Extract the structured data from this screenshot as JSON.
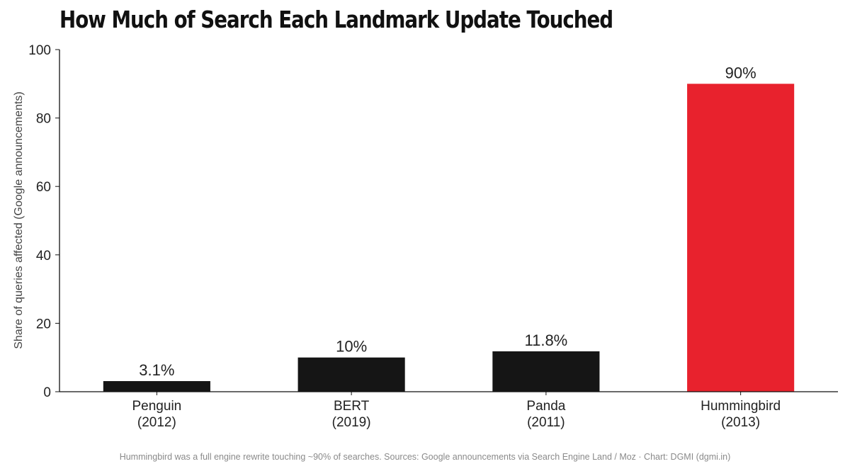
{
  "chart_data": {
    "type": "bar",
    "title": "How Much of Search Each Landmark Update Touched",
    "ylabel": "Share of queries affected (Google announcements)",
    "xlabel": "",
    "categories": [
      [
        "Penguin",
        "(2012)"
      ],
      [
        "BERT",
        "(2019)"
      ],
      [
        "Panda",
        "(2011)"
      ],
      [
        "Hummingbird",
        "(2013)"
      ]
    ],
    "values": [
      3.1,
      10,
      11.8,
      90
    ],
    "data_labels": [
      "3.1%",
      "10%",
      "11.8%",
      "90%"
    ],
    "bar_colors": [
      "#151515",
      "#151515",
      "#151515",
      "#e8222d"
    ],
    "ylim": [
      0,
      100
    ],
    "yticks": [
      0,
      20,
      40,
      60,
      80,
      100
    ],
    "grid": false,
    "legend": "none"
  },
  "footer": "Hummingbird was a full engine rewrite touching ~90% of searches. Sources: Google announcements via Search Engine Land / Moz · Chart: DGMI (dgmi.in)"
}
